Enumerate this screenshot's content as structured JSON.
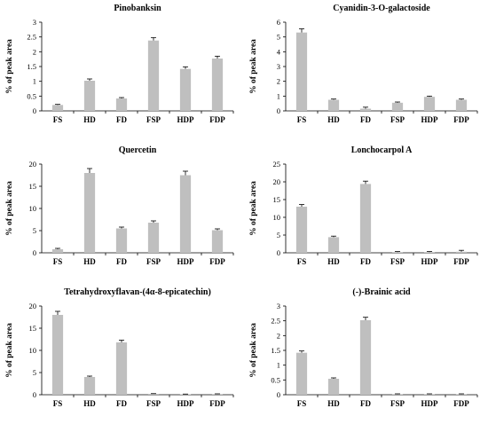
{
  "chart_data": [
    {
      "type": "bar",
      "title": "Pinobanksin",
      "ylabel": "% of peak area",
      "categories": [
        "FS",
        "HD",
        "FD",
        "FSP",
        "HDP",
        "FDP"
      ],
      "values": [
        0.2,
        1.02,
        0.42,
        2.38,
        1.42,
        1.77
      ],
      "errors": [
        0.02,
        0.06,
        0.03,
        0.1,
        0.07,
        0.08
      ],
      "ylim": [
        0,
        3
      ],
      "yticks": [
        "0",
        "0.5",
        "1",
        "1.5",
        "2",
        "2.5",
        "3"
      ],
      "yticks_values": [
        0,
        0.5,
        1,
        1.5,
        2,
        2.5,
        3
      ],
      "bar_color": "#bfbfbf"
    },
    {
      "type": "bar",
      "title": "Cyanidin-3-O-galactoside",
      "ylabel": "% of peak area",
      "categories": [
        "FS",
        "HD",
        "FD",
        "FSP",
        "HDP",
        "FDP"
      ],
      "values": [
        5.3,
        0.75,
        0.15,
        0.55,
        0.95,
        0.75
      ],
      "errors": [
        0.25,
        0.05,
        0.1,
        0.05,
        0.05,
        0.05
      ],
      "ylim": [
        0,
        6
      ],
      "yticks": [
        "0",
        "1",
        "2",
        "3",
        "4",
        "5",
        "6"
      ],
      "yticks_values": [
        0,
        1,
        2,
        3,
        4,
        5,
        6
      ],
      "bar_color": "#bfbfbf"
    },
    {
      "type": "bar",
      "title": "Quercetin",
      "ylabel": "% of peak area",
      "categories": [
        "FS",
        "HD",
        "FD",
        "FSP",
        "HDP",
        "FDP"
      ],
      "values": [
        0.8,
        18.0,
        5.5,
        6.8,
        17.5,
        5.1
      ],
      "errors": [
        0.2,
        1.0,
        0.3,
        0.4,
        0.9,
        0.3
      ],
      "ylim": [
        0,
        20
      ],
      "yticks": [
        "0",
        "5",
        "10",
        "15",
        "20"
      ],
      "yticks_values": [
        0,
        5,
        10,
        15,
        20
      ],
      "bar_color": "#bfbfbf"
    },
    {
      "type": "bar",
      "title": "Lonchocarpol A",
      "ylabel": "% of peak area",
      "categories": [
        "FS",
        "HD",
        "FD",
        "FSP",
        "HDP",
        "FDP"
      ],
      "values": [
        13.0,
        4.4,
        19.4,
        0.2,
        0.2,
        0.3
      ],
      "errors": [
        0.6,
        0.3,
        0.8,
        0.15,
        0.15,
        0.4
      ],
      "ylim": [
        0,
        25
      ],
      "yticks": [
        "0",
        "5",
        "10",
        "15",
        "20",
        "25"
      ],
      "yticks_values": [
        0,
        5,
        10,
        15,
        20,
        25
      ],
      "bar_color": "#bfbfbf"
    },
    {
      "type": "bar",
      "title": "Tetrahydroxyflavan-(4α-8-epicatechin)",
      "ylabel": "% of peak area",
      "categories": [
        "FS",
        "HD",
        "FD",
        "FSP",
        "HDP",
        "FDP"
      ],
      "values": [
        18.0,
        4.0,
        11.8,
        0.2,
        0.1,
        0.15
      ],
      "errors": [
        0.8,
        0.2,
        0.5,
        0.05,
        0.05,
        0.05
      ],
      "ylim": [
        0,
        20
      ],
      "yticks": [
        "0",
        "5",
        "10",
        "15",
        "20"
      ],
      "yticks_values": [
        0,
        5,
        10,
        15,
        20
      ],
      "bar_color": "#bfbfbf"
    },
    {
      "type": "bar",
      "title": "(-)-Brainic acid",
      "ylabel": "% of peak area",
      "categories": [
        "FS",
        "HD",
        "FD",
        "FSP",
        "HDP",
        "FDP"
      ],
      "values": [
        1.42,
        0.54,
        2.52,
        0.02,
        0.02,
        0.02
      ],
      "errors": [
        0.06,
        0.03,
        0.1,
        0.01,
        0.01,
        0.01
      ],
      "ylim": [
        0,
        3
      ],
      "yticks": [
        "0",
        "0.5",
        "1",
        "1.5",
        "2",
        "2.5",
        "3"
      ],
      "yticks_values": [
        0,
        0.5,
        1,
        1.5,
        2,
        2.5,
        3
      ],
      "bar_color": "#bfbfbf"
    }
  ]
}
